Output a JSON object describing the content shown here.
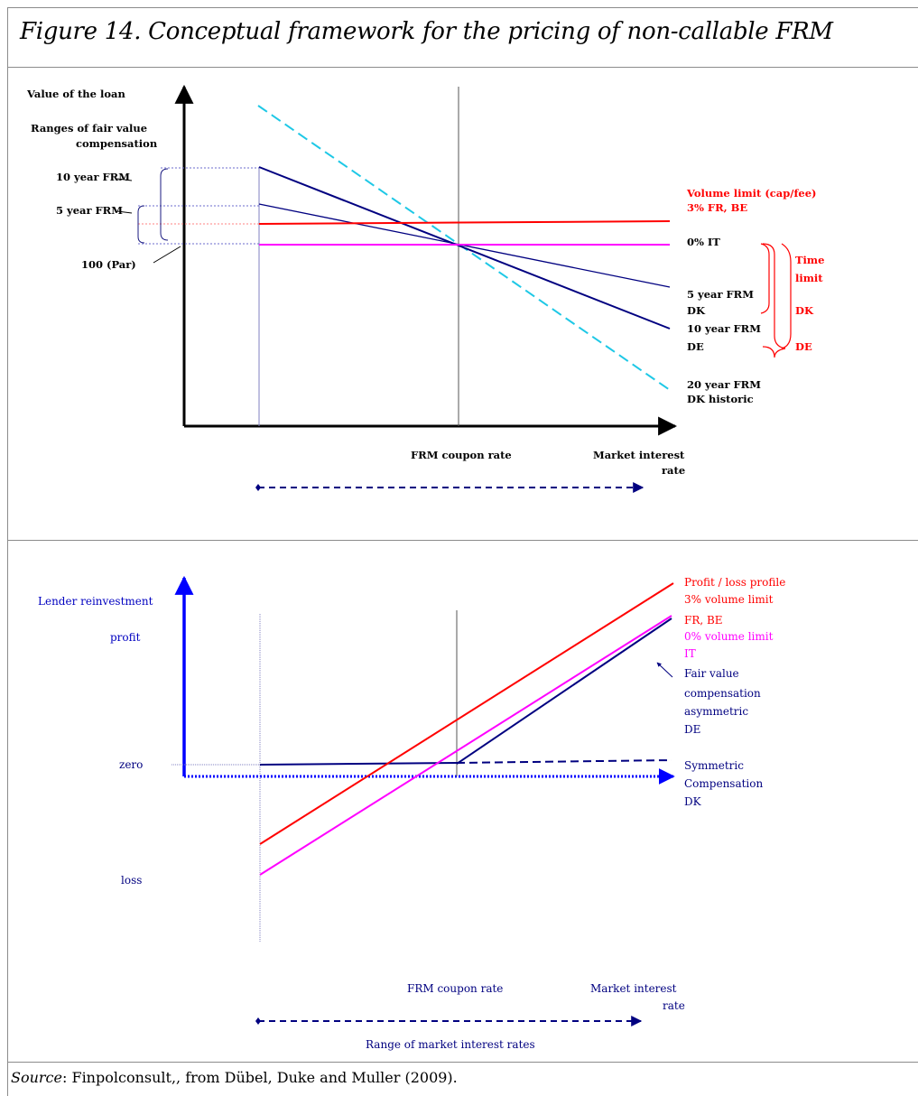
{
  "figure": {
    "title": "Figure 14. Conceptual framework for the pricing of non-callable FRM",
    "source_label": "Source",
    "source_text": ": Finpolconsult,, from Dübel, Duke and Muller (2009)."
  },
  "top_panel": {
    "y_axis_label": "Value of the loan",
    "ranges_label_line1": "Ranges of fair value",
    "ranges_label_line2": "compensation",
    "left_labels": [
      "10 year FRM",
      "5 year FRM",
      "100 (Par)"
    ],
    "x_center_label": "FRM coupon rate",
    "x_axis_label_line1": "Market interest",
    "x_axis_label_line2": "rate",
    "right_labels": {
      "volume_limit_line1": "Volume limit (cap/fee)",
      "volume_limit_line2": "3% FR, BE",
      "it": "0% IT",
      "frm5_line1": "5 year FRM",
      "frm5_line2": "DK",
      "frm10_line1": "10 year FRM",
      "frm10_line2": "DE",
      "frm20_line1": "20 year FRM",
      "frm20_line2": "DK historic"
    },
    "time_limit": {
      "line1": "Time",
      "line2": "limit",
      "dk": "DK",
      "de": "DE"
    },
    "colors": {
      "frm_lines": "#000080",
      "volume_limit": "#ff0000",
      "it": "#ff00ff",
      "frm20": "#1ec8e6",
      "labels_red": "#ff0000"
    }
  },
  "bottom_panel": {
    "y_axis_label_line1": "Lender reinvestment",
    "y_axis_label_line2": "profit",
    "y_zero": "zero",
    "y_loss": "loss",
    "x_center_label": "FRM coupon rate",
    "x_axis_label_line1": "Market interest",
    "x_axis_label_line2": "rate",
    "range_label": "Range of market interest rates",
    "right_labels": {
      "profit_loss_line1": "Profit / loss profile",
      "profit_loss_line2": "3% volume limit",
      "profit_loss_line3": "FR, BE",
      "it_line1": "0% volume limit",
      "it_line2": "IT",
      "fv_line1": "Fair value",
      "fv_line2": "compensation",
      "fv_line3": "asymmetric",
      "fv_line4": "DE",
      "sym_line1": "Symmetric",
      "sym_line2": "Compensation",
      "sym_line3": "DK"
    },
    "colors": {
      "axis": "#0000ff",
      "labels": "#000080",
      "volume_limit": "#ff0000",
      "it": "#ff00ff",
      "fair_value": "#000080"
    }
  }
}
